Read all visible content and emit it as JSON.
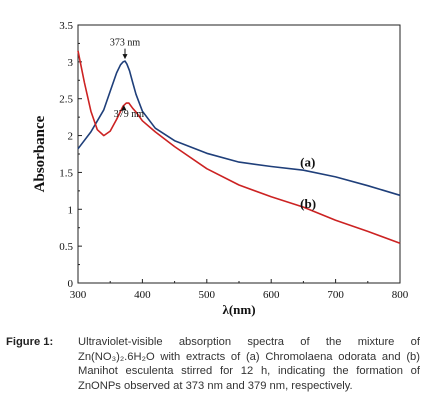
{
  "chart_data": {
    "type": "line",
    "xlabel": "λ(nm)",
    "ylabel": "Absorbance",
    "xlim": [
      300,
      800
    ],
    "ylim": [
      0,
      3.5
    ],
    "xticks": [
      "300",
      "400",
      "500",
      "600",
      "700",
      "800"
    ],
    "yticks": [
      "0",
      "0.5",
      "1",
      "1.5",
      "2",
      "2.5",
      "3",
      "3.5"
    ],
    "grid": false,
    "series": [
      {
        "name": "(a)",
        "color": "#1f3f7a",
        "x": [
          300,
          320,
          340,
          350,
          360,
          366,
          370,
          373,
          376,
          380,
          385,
          390,
          400,
          420,
          450,
          500,
          550,
          600,
          650,
          700,
          750,
          800
        ],
        "y": [
          1.82,
          2.05,
          2.35,
          2.6,
          2.85,
          2.96,
          3.0,
          3.01,
          2.97,
          2.88,
          2.72,
          2.56,
          2.33,
          2.1,
          1.93,
          1.76,
          1.64,
          1.58,
          1.53,
          1.44,
          1.32,
          1.19
        ]
      },
      {
        "name": "(b)",
        "color": "#cc2222",
        "x": [
          300,
          310,
          320,
          330,
          340,
          350,
          360,
          370,
          375,
          379,
          385,
          390,
          400,
          420,
          450,
          500,
          550,
          600,
          650,
          700,
          750,
          800
        ],
        "y": [
          3.15,
          2.72,
          2.33,
          2.08,
          2.0,
          2.06,
          2.22,
          2.4,
          2.44,
          2.44,
          2.37,
          2.32,
          2.2,
          2.05,
          1.85,
          1.55,
          1.33,
          1.17,
          1.03,
          0.85,
          0.7,
          0.54
        ]
      }
    ],
    "annotations": [
      {
        "text": "373 nm",
        "x": 373,
        "y": 3.22
      },
      {
        "text": "379 nm",
        "x": 379,
        "y": 2.25
      }
    ],
    "series_labels": [
      {
        "text": "(a)",
        "x": 645,
        "y": 1.58
      },
      {
        "text": "(b)",
        "x": 645,
        "y": 1.02
      }
    ]
  },
  "caption": {
    "label": "Figure 1:",
    "text": "Ultraviolet-visible absorption spectra of the mixture of Zn(NO₃)₂.6H₂O with extracts of (a) Chromolaena odorata and (b) Manihot esculenta stirred for 12 h, indicating the formation of ZnONPs observed at 373 nm and 379 nm, respectively."
  }
}
